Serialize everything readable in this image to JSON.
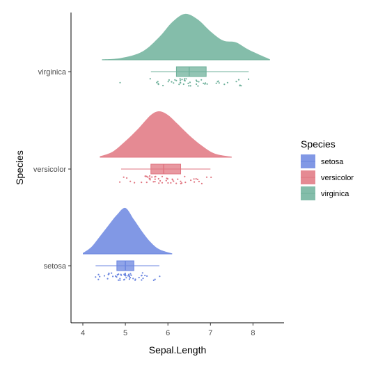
{
  "chart_data": {
    "type": "raincloud",
    "xlabel": "Sepal.Length",
    "ylabel": "Species",
    "xlim": [
      3.7,
      8.75
    ],
    "x_ticks": [
      4,
      5,
      6,
      7,
      8
    ],
    "x_tick_labels": [
      "4",
      "5",
      "6",
      "7",
      "8"
    ],
    "categories": [
      "setosa",
      "versicolor",
      "virginica"
    ],
    "grid": false,
    "legend": {
      "title": "Species",
      "placement": "right",
      "entries": [
        "setosa",
        "versicolor",
        "virginica"
      ]
    },
    "series": [
      {
        "name": "setosa",
        "color": "#6b86e0",
        "box": {
          "min": 4.3,
          "q1": 4.8,
          "median": 5.0,
          "q3": 5.2,
          "max": 5.8
        },
        "density": {
          "x": [
            4.0,
            4.2,
            4.4,
            4.6,
            4.8,
            5.0,
            5.2,
            5.4,
            5.6,
            5.8,
            6.1
          ],
          "y": [
            0.02,
            0.15,
            0.38,
            0.62,
            0.85,
            1.0,
            0.75,
            0.48,
            0.25,
            0.1,
            0.01
          ]
        },
        "points": [
          4.3,
          4.4,
          4.4,
          4.4,
          4.5,
          4.6,
          4.6,
          4.6,
          4.6,
          4.7,
          4.7,
          4.8,
          4.8,
          4.8,
          4.8,
          4.8,
          4.9,
          4.9,
          4.9,
          4.9,
          5.0,
          5.0,
          5.0,
          5.0,
          5.0,
          5.0,
          5.0,
          5.0,
          5.1,
          5.1,
          5.1,
          5.1,
          5.1,
          5.1,
          5.1,
          5.1,
          5.2,
          5.2,
          5.2,
          5.3,
          5.4,
          5.4,
          5.4,
          5.4,
          5.4,
          5.5,
          5.5,
          5.7,
          5.7,
          5.8
        ]
      },
      {
        "name": "versicolor",
        "color": "#e07580",
        "box": {
          "min": 4.9,
          "q1": 5.6,
          "median": 5.9,
          "q3": 6.3,
          "max": 7.0
        },
        "density": {
          "x": [
            4.4,
            4.7,
            5.0,
            5.3,
            5.6,
            5.8,
            6.0,
            6.2,
            6.5,
            6.8,
            7.1,
            7.5
          ],
          "y": [
            0.02,
            0.12,
            0.35,
            0.62,
            0.92,
            1.0,
            0.92,
            0.75,
            0.48,
            0.25,
            0.08,
            0.01
          ]
        },
        "points": [
          4.9,
          5.0,
          5.0,
          5.1,
          5.2,
          5.4,
          5.5,
          5.5,
          5.5,
          5.5,
          5.5,
          5.6,
          5.6,
          5.6,
          5.6,
          5.6,
          5.7,
          5.7,
          5.7,
          5.7,
          5.7,
          5.8,
          5.8,
          5.8,
          5.9,
          5.9,
          6.0,
          6.0,
          6.0,
          6.0,
          6.1,
          6.1,
          6.1,
          6.1,
          6.2,
          6.2,
          6.3,
          6.3,
          6.3,
          6.4,
          6.4,
          6.5,
          6.6,
          6.6,
          6.7,
          6.7,
          6.7,
          6.8,
          6.9,
          7.0
        ]
      },
      {
        "name": "virginica",
        "color": "#6fb19b",
        "box": {
          "min": 5.6,
          "q1": 6.2,
          "median": 6.5,
          "q3": 6.9,
          "max": 7.9
        },
        "density": {
          "x": [
            4.45,
            4.9,
            5.4,
            5.8,
            6.1,
            6.4,
            6.7,
            7.0,
            7.3,
            7.6,
            7.9,
            8.4
          ],
          "y": [
            0.01,
            0.04,
            0.18,
            0.5,
            0.82,
            1.0,
            0.88,
            0.62,
            0.42,
            0.38,
            0.22,
            0.01
          ]
        },
        "points": [
          4.9,
          5.6,
          5.7,
          5.8,
          5.8,
          5.8,
          5.9,
          6.0,
          6.0,
          6.1,
          6.1,
          6.2,
          6.2,
          6.3,
          6.3,
          6.3,
          6.3,
          6.3,
          6.3,
          6.4,
          6.4,
          6.4,
          6.4,
          6.4,
          6.5,
          6.5,
          6.5,
          6.5,
          6.7,
          6.7,
          6.7,
          6.7,
          6.7,
          6.8,
          6.8,
          6.9,
          6.9,
          6.9,
          7.1,
          7.2,
          7.2,
          7.2,
          7.3,
          7.4,
          7.6,
          7.7,
          7.7,
          7.7,
          7.7,
          7.9
        ]
      }
    ]
  }
}
